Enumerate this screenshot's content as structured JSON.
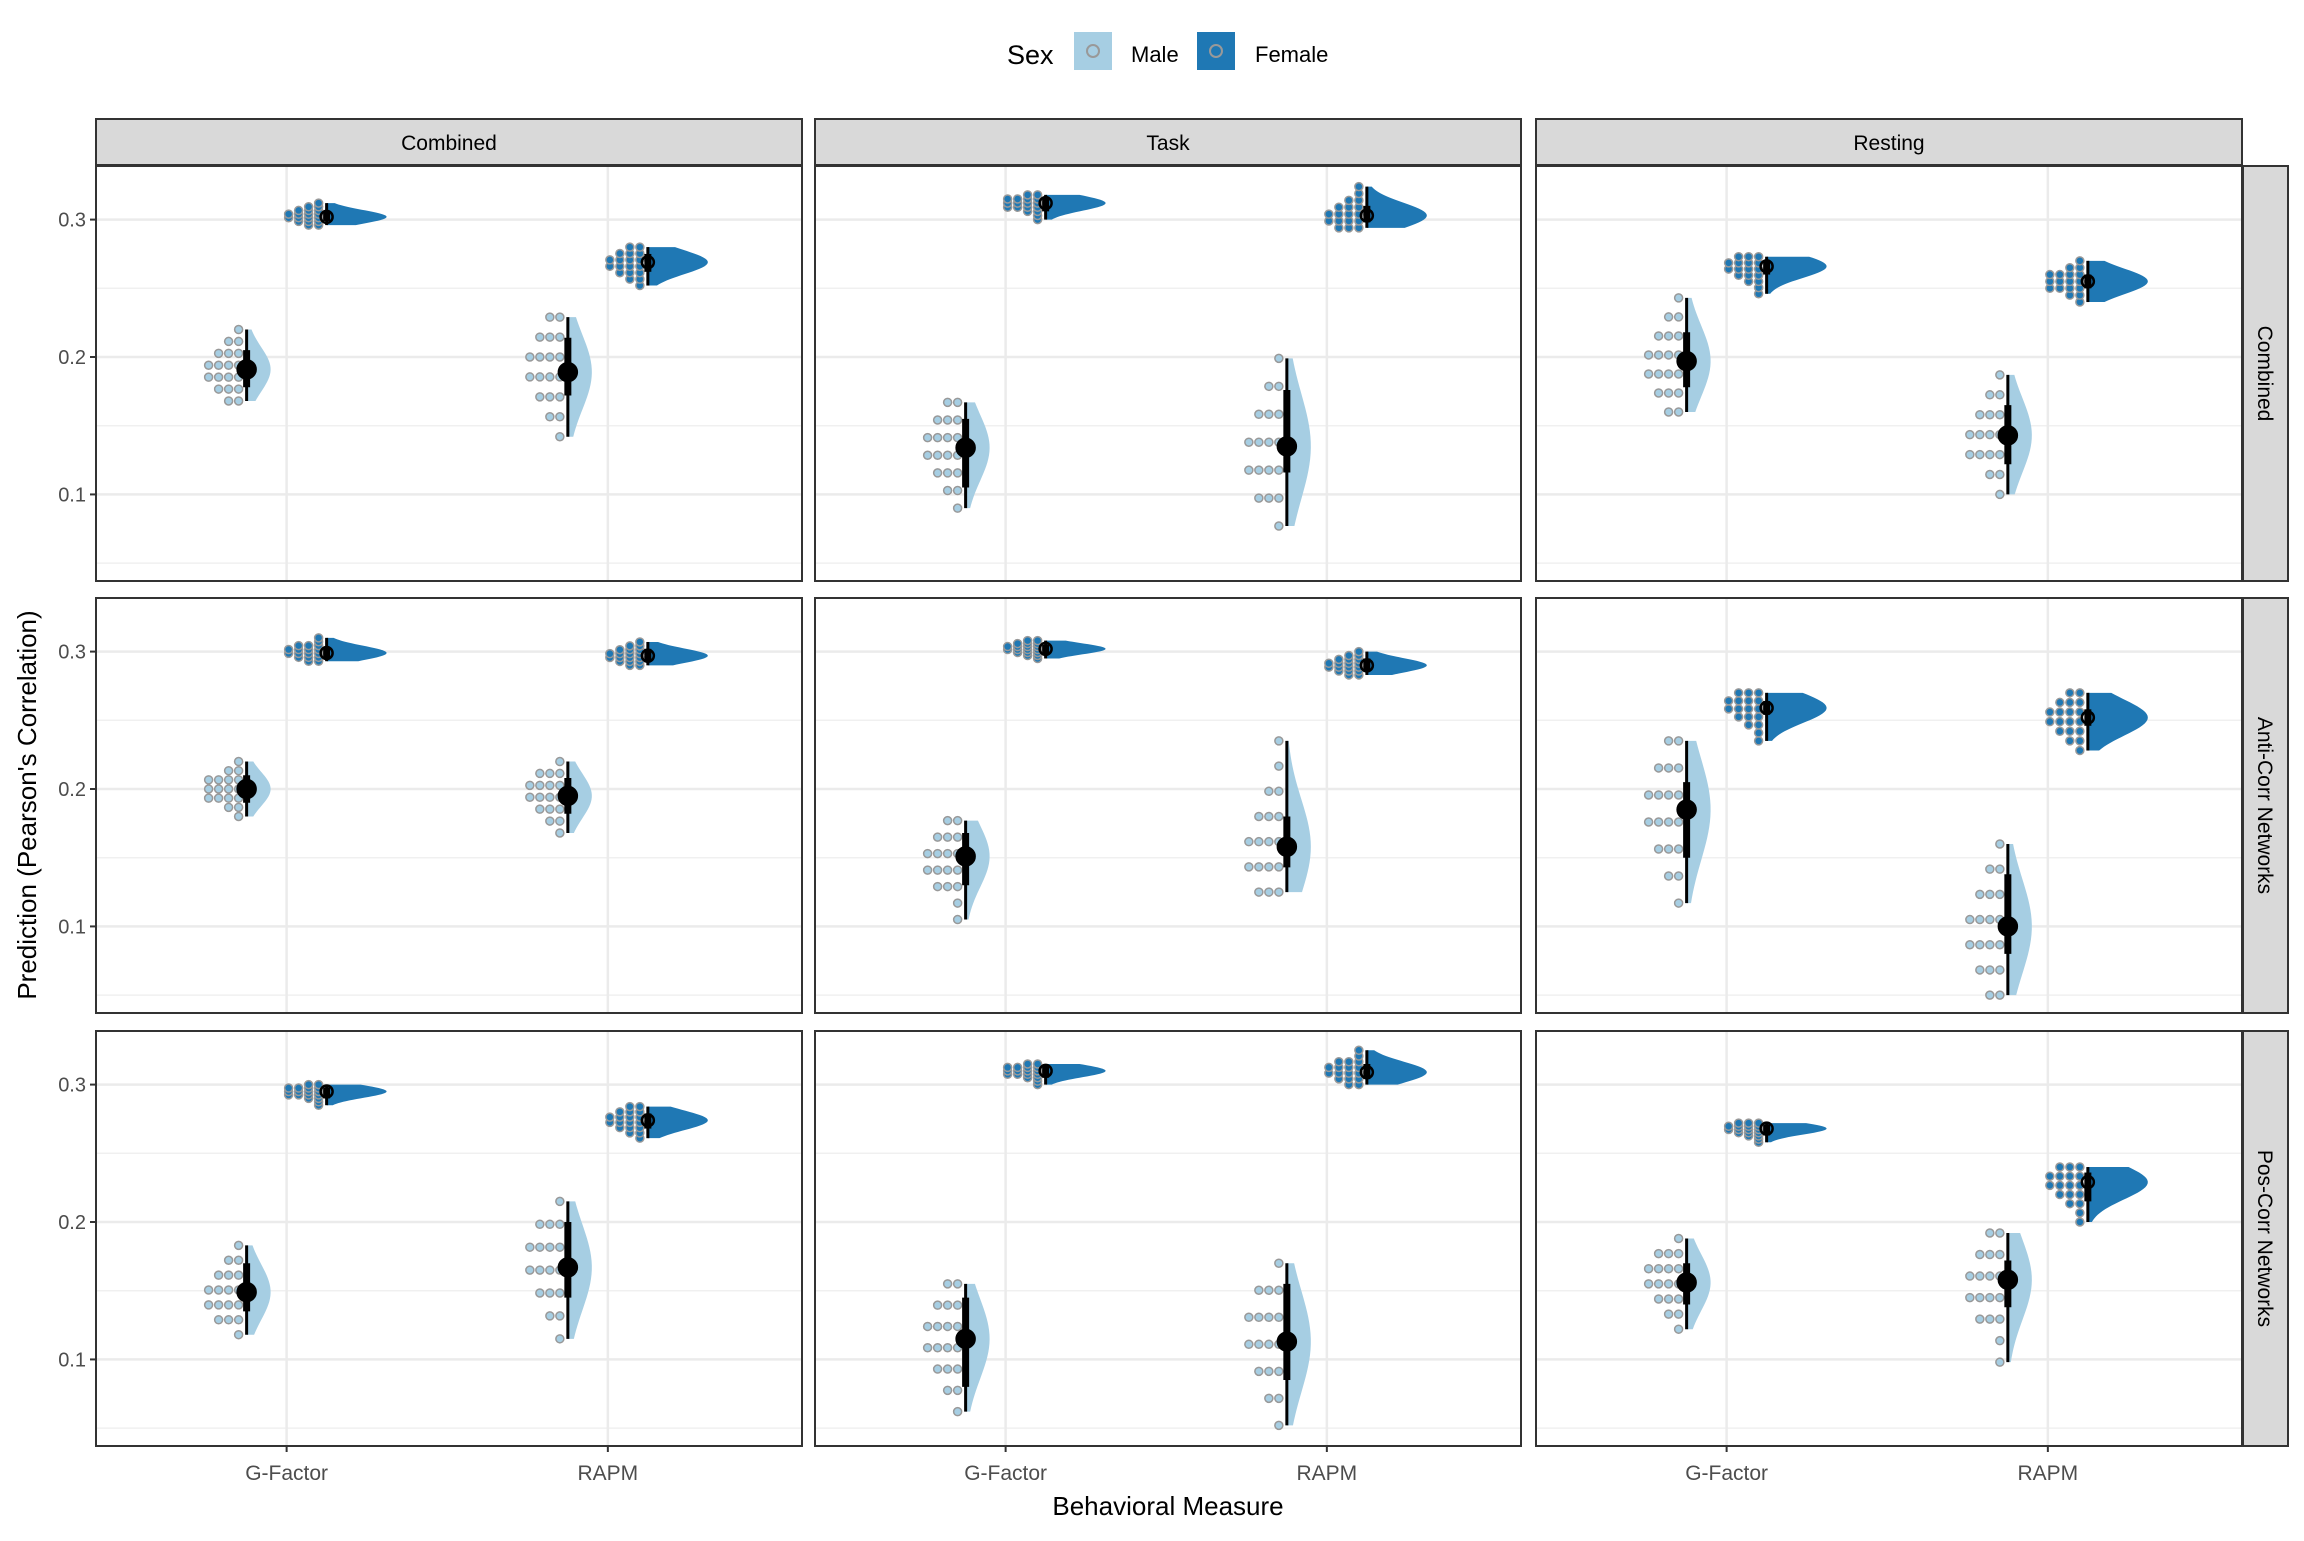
{
  "chart_data": {
    "type": "raincloud",
    "title": "",
    "xlabel": "Behavioral Measure",
    "ylabel": "Prediction (Pearson's Correlation)",
    "ylim": [
      0.037,
      0.339
    ],
    "yticks": [
      0.1,
      0.2,
      0.3
    ],
    "ytick_labels": [
      "0.1",
      "0.2",
      "0.3"
    ],
    "grid": true,
    "legend": {
      "position": "top",
      "title": "Sex",
      "entries": [
        {
          "label": "Male",
          "color": "#a6cee3"
        },
        {
          "label": "Female",
          "color": "#1f78b4"
        }
      ]
    },
    "categories": [
      "G-Factor",
      "RAPM"
    ],
    "col_facets": [
      "Combined",
      "Task",
      "Resting"
    ],
    "row_facets": [
      "Combined",
      "Anti-Corr Networks",
      "Pos-Corr Networks"
    ],
    "note": "values per group: median, inner interval [lo,hi], range [min,max]",
    "panels": [
      {
        "row": 0,
        "col": 0,
        "groups": [
          {
            "measure": "G-Factor",
            "sex": "Male",
            "median": 0.191,
            "inner": [
              0.178,
              0.205
            ],
            "range": [
              0.168,
              0.22
            ]
          },
          {
            "measure": "G-Factor",
            "sex": "Female",
            "median": 0.302,
            "inner": [
              0.299,
              0.306
            ],
            "range": [
              0.296,
              0.312
            ]
          },
          {
            "measure": "RAPM",
            "sex": "Male",
            "median": 0.189,
            "inner": [
              0.172,
              0.214
            ],
            "range": [
              0.142,
              0.229
            ]
          },
          {
            "measure": "RAPM",
            "sex": "Female",
            "median": 0.269,
            "inner": [
              0.262,
              0.275
            ],
            "range": [
              0.252,
              0.28
            ]
          }
        ]
      },
      {
        "row": 0,
        "col": 1,
        "groups": [
          {
            "measure": "G-Factor",
            "sex": "Male",
            "median": 0.134,
            "inner": [
              0.105,
              0.155
            ],
            "range": [
              0.09,
              0.167
            ]
          },
          {
            "measure": "G-Factor",
            "sex": "Female",
            "median": 0.312,
            "inner": [
              0.306,
              0.316
            ],
            "range": [
              0.3,
              0.318
            ]
          },
          {
            "measure": "RAPM",
            "sex": "Male",
            "median": 0.135,
            "inner": [
              0.116,
              0.176
            ],
            "range": [
              0.077,
              0.199
            ]
          },
          {
            "measure": "RAPM",
            "sex": "Female",
            "median": 0.303,
            "inner": [
              0.298,
              0.31
            ],
            "range": [
              0.294,
              0.324
            ]
          }
        ]
      },
      {
        "row": 0,
        "col": 2,
        "groups": [
          {
            "measure": "G-Factor",
            "sex": "Male",
            "median": 0.197,
            "inner": [
              0.178,
              0.218
            ],
            "range": [
              0.16,
              0.243
            ]
          },
          {
            "measure": "G-Factor",
            "sex": "Female",
            "median": 0.266,
            "inner": [
              0.26,
              0.27
            ],
            "range": [
              0.246,
              0.273
            ]
          },
          {
            "measure": "RAPM",
            "sex": "Male",
            "median": 0.143,
            "inner": [
              0.122,
              0.165
            ],
            "range": [
              0.1,
              0.187
            ]
          },
          {
            "measure": "RAPM",
            "sex": "Female",
            "median": 0.255,
            "inner": [
              0.25,
              0.26
            ],
            "range": [
              0.24,
              0.27
            ]
          }
        ]
      },
      {
        "row": 1,
        "col": 0,
        "groups": [
          {
            "measure": "G-Factor",
            "sex": "Male",
            "median": 0.2,
            "inner": [
              0.19,
              0.21
            ],
            "range": [
              0.18,
              0.22
            ]
          },
          {
            "measure": "G-Factor",
            "sex": "Female",
            "median": 0.299,
            "inner": [
              0.295,
              0.303
            ],
            "range": [
              0.293,
              0.31
            ]
          },
          {
            "measure": "RAPM",
            "sex": "Male",
            "median": 0.195,
            "inner": [
              0.182,
              0.208
            ],
            "range": [
              0.168,
              0.22
            ]
          },
          {
            "measure": "RAPM",
            "sex": "Female",
            "median": 0.297,
            "inner": [
              0.293,
              0.302
            ],
            "range": [
              0.29,
              0.307
            ]
          }
        ]
      },
      {
        "row": 1,
        "col": 1,
        "groups": [
          {
            "measure": "G-Factor",
            "sex": "Male",
            "median": 0.151,
            "inner": [
              0.13,
              0.168
            ],
            "range": [
              0.105,
              0.177
            ]
          },
          {
            "measure": "G-Factor",
            "sex": "Female",
            "median": 0.302,
            "inner": [
              0.298,
              0.305
            ],
            "range": [
              0.295,
              0.308
            ]
          },
          {
            "measure": "RAPM",
            "sex": "Male",
            "median": 0.158,
            "inner": [
              0.143,
              0.18
            ],
            "range": [
              0.125,
              0.235
            ]
          },
          {
            "measure": "RAPM",
            "sex": "Female",
            "median": 0.29,
            "inner": [
              0.286,
              0.295
            ],
            "range": [
              0.283,
              0.3
            ]
          }
        ]
      },
      {
        "row": 1,
        "col": 2,
        "groups": [
          {
            "measure": "G-Factor",
            "sex": "Male",
            "median": 0.185,
            "inner": [
              0.15,
              0.205
            ],
            "range": [
              0.117,
              0.235
            ]
          },
          {
            "measure": "G-Factor",
            "sex": "Female",
            "median": 0.259,
            "inner": [
              0.254,
              0.264
            ],
            "range": [
              0.235,
              0.27
            ]
          },
          {
            "measure": "RAPM",
            "sex": "Male",
            "median": 0.1,
            "inner": [
              0.08,
              0.138
            ],
            "range": [
              0.05,
              0.16
            ]
          },
          {
            "measure": "RAPM",
            "sex": "Female",
            "median": 0.252,
            "inner": [
              0.246,
              0.258
            ],
            "range": [
              0.228,
              0.27
            ]
          }
        ]
      },
      {
        "row": 2,
        "col": 0,
        "groups": [
          {
            "measure": "G-Factor",
            "sex": "Male",
            "median": 0.149,
            "inner": [
              0.135,
              0.17
            ],
            "range": [
              0.118,
              0.183
            ]
          },
          {
            "measure": "G-Factor",
            "sex": "Female",
            "median": 0.295,
            "inner": [
              0.29,
              0.298
            ],
            "range": [
              0.285,
              0.3
            ]
          },
          {
            "measure": "RAPM",
            "sex": "Male",
            "median": 0.167,
            "inner": [
              0.145,
              0.2
            ],
            "range": [
              0.115,
              0.215
            ]
          },
          {
            "measure": "RAPM",
            "sex": "Female",
            "median": 0.274,
            "inner": [
              0.268,
              0.279
            ],
            "range": [
              0.261,
              0.284
            ]
          }
        ]
      },
      {
        "row": 2,
        "col": 1,
        "groups": [
          {
            "measure": "G-Factor",
            "sex": "Male",
            "median": 0.115,
            "inner": [
              0.08,
              0.145
            ],
            "range": [
              0.062,
              0.155
            ]
          },
          {
            "measure": "G-Factor",
            "sex": "Female",
            "median": 0.31,
            "inner": [
              0.305,
              0.314
            ],
            "range": [
              0.3,
              0.315
            ]
          },
          {
            "measure": "RAPM",
            "sex": "Male",
            "median": 0.113,
            "inner": [
              0.085,
              0.155
            ],
            "range": [
              0.052,
              0.17
            ]
          },
          {
            "measure": "RAPM",
            "sex": "Female",
            "median": 0.309,
            "inner": [
              0.304,
              0.315
            ],
            "range": [
              0.3,
              0.325
            ]
          }
        ]
      },
      {
        "row": 2,
        "col": 2,
        "groups": [
          {
            "measure": "G-Factor",
            "sex": "Male",
            "median": 0.156,
            "inner": [
              0.14,
              0.17
            ],
            "range": [
              0.122,
              0.188
            ]
          },
          {
            "measure": "G-Factor",
            "sex": "Female",
            "median": 0.268,
            "inner": [
              0.263,
              0.271
            ],
            "range": [
              0.258,
              0.272
            ]
          },
          {
            "measure": "RAPM",
            "sex": "Male",
            "median": 0.158,
            "inner": [
              0.138,
              0.172
            ],
            "range": [
              0.098,
              0.192
            ]
          },
          {
            "measure": "RAPM",
            "sex": "Female",
            "median": 0.229,
            "inner": [
              0.215,
              0.236
            ],
            "range": [
              0.2,
              0.24
            ]
          }
        ]
      }
    ]
  }
}
